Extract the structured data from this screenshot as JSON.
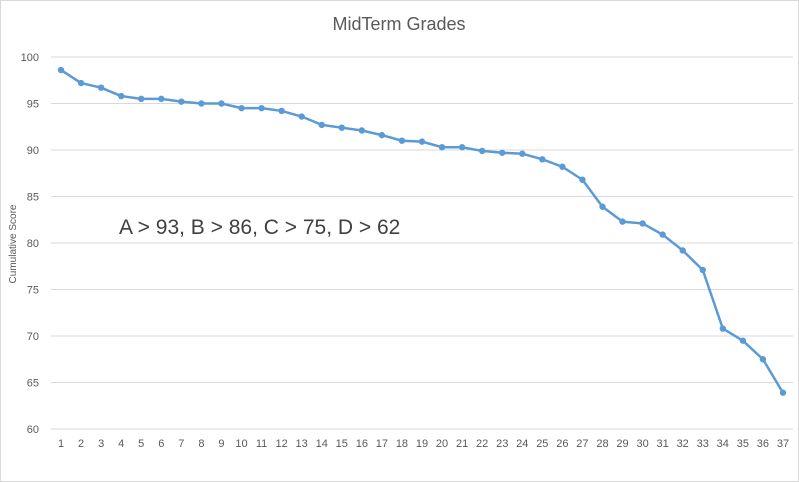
{
  "chart_data": {
    "type": "line",
    "title": "MidTerm Grades",
    "xlabel": "",
    "ylabel": "Cumulative Score",
    "ylim": [
      60,
      100
    ],
    "yticks": [
      60,
      65,
      70,
      75,
      80,
      85,
      90,
      95,
      100
    ],
    "grid": true,
    "legend": "none",
    "annotation": "A > 93, B > 86, C > 75, D > 62",
    "x": [
      1,
      2,
      3,
      4,
      5,
      6,
      7,
      8,
      9,
      10,
      11,
      12,
      13,
      14,
      15,
      16,
      17,
      18,
      19,
      20,
      21,
      22,
      23,
      24,
      25,
      26,
      27,
      28,
      29,
      30,
      31,
      32,
      33,
      34,
      35,
      36,
      37
    ],
    "series": [
      {
        "values": [
          98.6,
          97.2,
          96.7,
          95.8,
          95.5,
          95.5,
          95.2,
          95.0,
          95.0,
          94.5,
          94.5,
          94.2,
          93.6,
          92.7,
          92.4,
          92.1,
          91.6,
          91.0,
          90.9,
          90.3,
          90.3,
          89.9,
          89.7,
          89.6,
          89.0,
          88.2,
          86.8,
          83.9,
          82.3,
          82.1,
          80.9,
          79.2,
          77.1,
          70.8,
          69.5,
          67.5,
          63.9
        ],
        "color": "#5b9bd5"
      }
    ]
  }
}
